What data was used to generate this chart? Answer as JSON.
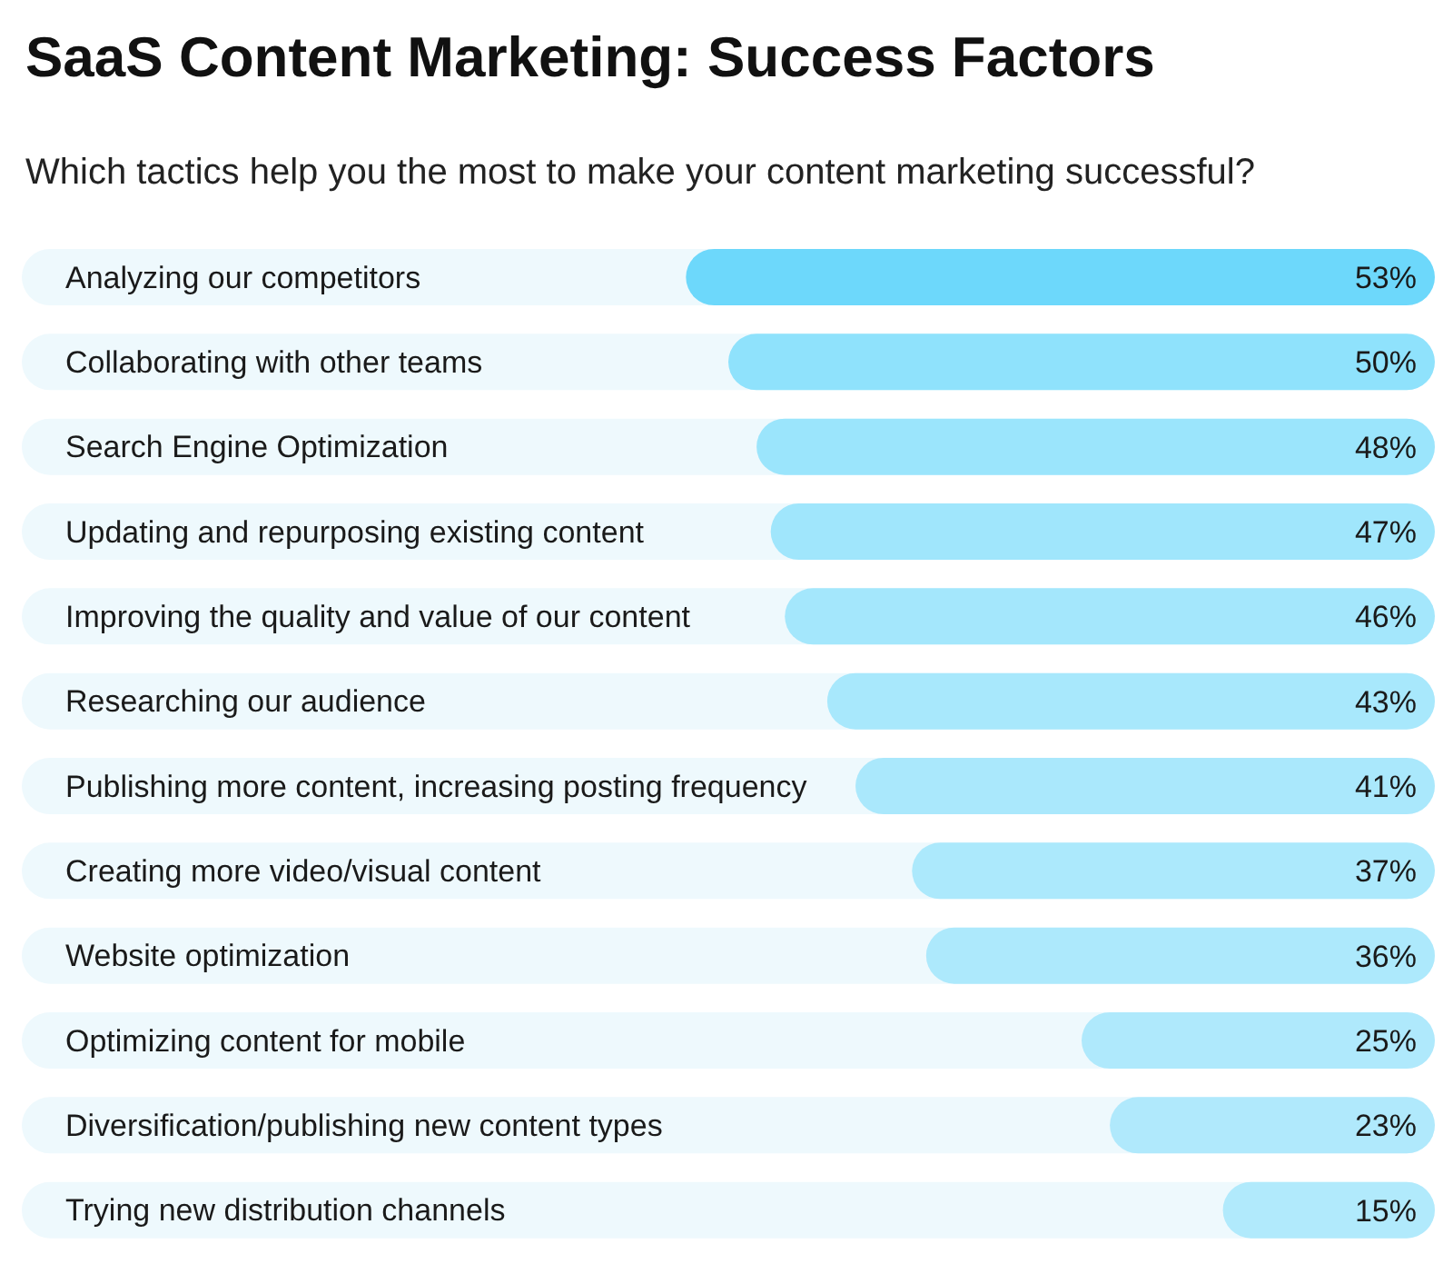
{
  "chart_data": {
    "type": "bar",
    "orientation": "horizontal",
    "title": "SaaS Content Marketing: Success Factors",
    "subtitle": "Which tactics help you the most to make your content marketing successful?",
    "categories": [
      "Analyzing our competitors",
      "Collaborating with other teams",
      "Search Engine Optimization",
      "Updating and repurposing existing content",
      "Improving the quality and value of our content",
      "Researching our audience",
      "Publishing more content, increasing posting frequency",
      "Creating more video/visual content",
      "Website optimization",
      "Optimizing content for mobile",
      "Diversification/publishing new content types",
      "Trying new distribution channels"
    ],
    "values": [
      53,
      50,
      48,
      47,
      46,
      43,
      41,
      37,
      36,
      25,
      23,
      15
    ],
    "value_labels": [
      "53%",
      "50%",
      "48%",
      "47%",
      "46%",
      "43%",
      "41%",
      "37%",
      "36%",
      "25%",
      "23%",
      "15%"
    ],
    "colors": [
      "#6dd8fb",
      "#8fe2fc",
      "#9be5fc",
      "#a0e6fc",
      "#a4e7fc",
      "#a8e8fc",
      "#aae8fc",
      "#ace9fc",
      "#ade9fc",
      "#afe9fc",
      "#b0e9fc",
      "#b1eafc"
    ],
    "xlim": [
      100,
      0
    ],
    "grid": false,
    "legend": false
  }
}
